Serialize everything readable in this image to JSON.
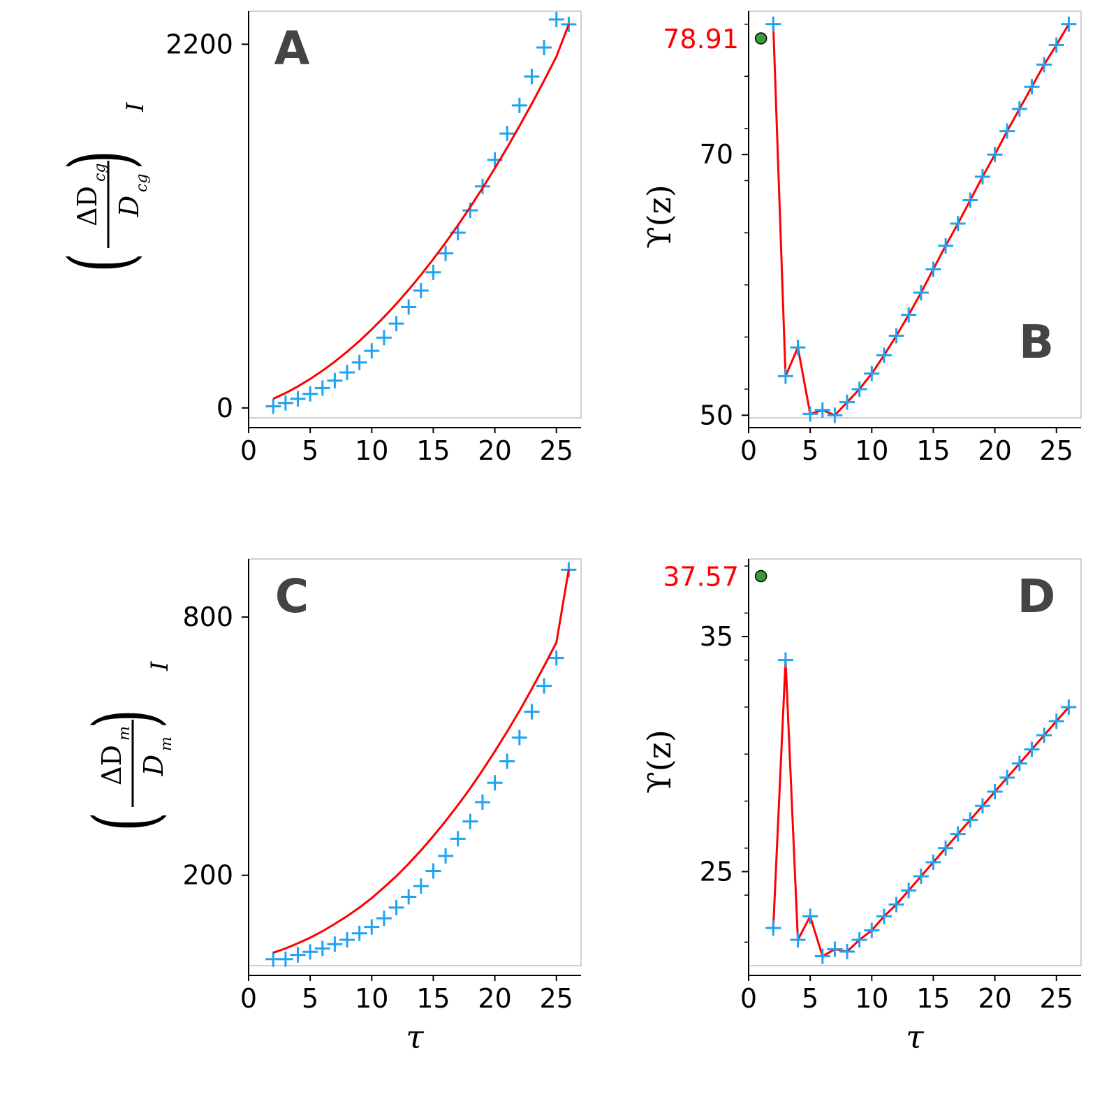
{
  "colors": {
    "fit_line": "#ff0000",
    "markers": "#1fa3f0",
    "special_point": "#3a9a3a",
    "special_label": "#ff0000",
    "panel_letter": "#444444"
  },
  "chart_data": [
    {
      "panel": "A",
      "type": "line",
      "xlabel": "",
      "ylabel": {
        "prefix": "ΔD",
        "numerator_sub": "cg",
        "denominator": "D",
        "denominator_sub": "cg",
        "outer_sub": "I"
      },
      "xlim": [
        0,
        27
      ],
      "ylim": [
        -60,
        2400
      ],
      "xticks": [
        0,
        5,
        10,
        15,
        20,
        25
      ],
      "yticks": [
        0,
        2200
      ],
      "grid": false,
      "series": [
        {
          "kind": "markers",
          "x": [
            2,
            3,
            4,
            5,
            6,
            7,
            8,
            9,
            10,
            11,
            12,
            13,
            14,
            15,
            16,
            17,
            18,
            19,
            20,
            21,
            22,
            23,
            24,
            25,
            26
          ],
          "y": [
            10,
            30,
            55,
            85,
            120,
            165,
            215,
            275,
            345,
            425,
            510,
            610,
            710,
            820,
            935,
            1060,
            1195,
            1340,
            1500,
            1660,
            1830,
            2005,
            2180,
            2350,
            2320
          ]
        },
        {
          "kind": "line",
          "x": [
            2,
            3,
            4,
            5,
            6,
            7,
            8,
            9,
            10,
            11,
            12,
            13,
            14,
            15,
            16,
            17,
            18,
            19,
            20,
            21,
            22,
            23,
            24,
            25,
            26
          ],
          "y": [
            55,
            90,
            130,
            175,
            225,
            280,
            340,
            405,
            475,
            550,
            630,
            715,
            805,
            900,
            1000,
            1105,
            1215,
            1330,
            1450,
            1575,
            1705,
            1840,
            1980,
            2125,
            2320
          ]
        }
      ]
    },
    {
      "panel": "B",
      "type": "line",
      "xlabel": "",
      "ylabel": "ϒ(z)",
      "xlim": [
        0,
        27
      ],
      "ylim": [
        49.8,
        81
      ],
      "xticks": [
        0,
        5,
        10,
        15,
        20,
        25
      ],
      "yticks": [
        50,
        70
      ],
      "special_point": {
        "x": 1,
        "y": 78.91,
        "label": "78.91"
      },
      "grid": false,
      "series": [
        {
          "kind": "markers+line",
          "x": [
            2,
            3,
            4,
            5,
            6,
            7,
            8,
            9,
            10,
            11,
            12,
            13,
            14,
            15,
            16,
            17,
            18,
            19,
            20,
            21,
            22,
            23,
            24,
            25,
            26
          ],
          "y": [
            80.0,
            53.0,
            55.2,
            50.1,
            50.4,
            50.0,
            51.0,
            52.0,
            53.2,
            54.6,
            56.1,
            57.7,
            59.4,
            61.2,
            63.0,
            64.7,
            66.5,
            68.3,
            70.0,
            71.8,
            73.5,
            75.2,
            76.9,
            78.4,
            80.0
          ]
        }
      ]
    },
    {
      "panel": "C",
      "type": "line",
      "xlabel": "τ",
      "ylabel": {
        "prefix": "ΔD",
        "numerator_sub": "m",
        "denominator": "D",
        "denominator_sub": "m",
        "outer_sub": "I"
      },
      "xlim": [
        0,
        27
      ],
      "ylim": [
        -10,
        935
      ],
      "xticks": [
        0,
        5,
        10,
        15,
        20,
        25
      ],
      "yticks": [
        200,
        800
      ],
      "grid": false,
      "series": [
        {
          "kind": "markers",
          "x": [
            2,
            3,
            4,
            5,
            6,
            7,
            8,
            9,
            10,
            11,
            12,
            13,
            14,
            15,
            16,
            17,
            18,
            19,
            20,
            21,
            22,
            23,
            24,
            25,
            26
          ],
          "y": [
            5,
            5,
            15,
            22,
            30,
            40,
            50,
            65,
            80,
            100,
            125,
            150,
            175,
            210,
            245,
            285,
            325,
            370,
            415,
            465,
            520,
            580,
            640,
            705,
            910
          ]
        },
        {
          "kind": "line",
          "x": [
            2,
            3,
            4,
            5,
            6,
            7,
            8,
            9,
            10,
            11,
            12,
            13,
            14,
            15,
            16,
            17,
            18,
            19,
            20,
            21,
            22,
            23,
            24,
            25,
            26
          ],
          "y": [
            20,
            30,
            42,
            55,
            70,
            87,
            105,
            125,
            147,
            172,
            198,
            227,
            258,
            291,
            326,
            363,
            402,
            444,
            488,
            534,
            582,
            633,
            686,
            741,
            910
          ]
        }
      ]
    },
    {
      "panel": "D",
      "type": "line",
      "xlabel": "τ",
      "ylabel": "ϒ(z)",
      "xlim": [
        0,
        27
      ],
      "ylim": [
        21.0,
        38.3
      ],
      "xticks": [
        0,
        5,
        10,
        15,
        20,
        25
      ],
      "yticks": [
        25,
        35
      ],
      "special_point": {
        "x": 1,
        "y": 37.57,
        "label": "37.57"
      },
      "grid": false,
      "series": [
        {
          "kind": "markers+line",
          "x": [
            2,
            3,
            4,
            5,
            6,
            7,
            8,
            9,
            10,
            11,
            12,
            13,
            14,
            15,
            16,
            17,
            18,
            19,
            20,
            21,
            22,
            23,
            24,
            25,
            26
          ],
          "y": [
            22.6,
            34.0,
            22.1,
            23.1,
            21.4,
            21.7,
            21.6,
            22.1,
            22.5,
            23.1,
            23.6,
            24.2,
            24.8,
            25.4,
            26.0,
            26.6,
            27.2,
            27.8,
            28.4,
            29.0,
            29.6,
            30.2,
            30.8,
            31.4,
            32.0
          ]
        }
      ]
    }
  ]
}
